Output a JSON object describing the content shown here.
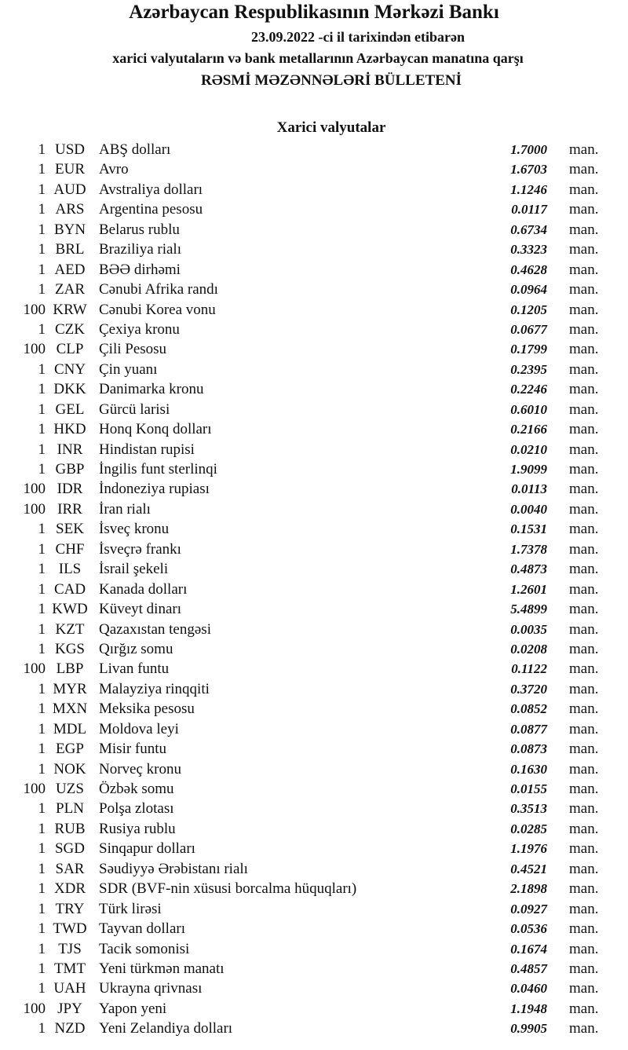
{
  "header": {
    "bank": "Azərbaycan Respublikasının Mərkəzi Bankı",
    "date_line": "23.09.2022 -ci il tarixindən etibarən",
    "subtitle": "xarici valyutaların və bank metallarının Azərbaycan manatına qarşı",
    "title": "RƏSMİ MƏZƏNNƏLƏRİ BÜLLETENİ"
  },
  "section_title": "Xarici valyutalar",
  "unit": "man.",
  "rates": [
    {
      "nominal": "1",
      "code": "USD",
      "name": "ABŞ dolları",
      "rate": "1.7000"
    },
    {
      "nominal": "1",
      "code": "EUR",
      "name": "Avro",
      "rate": "1.6703"
    },
    {
      "nominal": "1",
      "code": "AUD",
      "name": "Avstraliya dolları",
      "rate": "1.1246"
    },
    {
      "nominal": "1",
      "code": "ARS",
      "name": "Argentina pesosu",
      "rate": "0.0117"
    },
    {
      "nominal": "1",
      "code": "BYN",
      "name": "Belarus rublu",
      "rate": "0.6734"
    },
    {
      "nominal": "1",
      "code": "BRL",
      "name": "Braziliya rialı",
      "rate": "0.3323"
    },
    {
      "nominal": "1",
      "code": "AED",
      "name": "BƏƏ dirhəmi",
      "rate": "0.4628"
    },
    {
      "nominal": "1",
      "code": "ZAR",
      "name": "Cənubi Afrika randı",
      "rate": "0.0964"
    },
    {
      "nominal": "100",
      "code": "KRW",
      "name": "Cənubi Korea vonu",
      "rate": "0.1205"
    },
    {
      "nominal": "1",
      "code": "CZK",
      "name": "Çexiya kronu",
      "rate": "0.0677"
    },
    {
      "nominal": "100",
      "code": "CLP",
      "name": "Çili Pesosu",
      "rate": "0.1799"
    },
    {
      "nominal": "1",
      "code": "CNY",
      "name": "Çin yuanı",
      "rate": "0.2395"
    },
    {
      "nominal": "1",
      "code": "DKK",
      "name": "Danimarka kronu",
      "rate": "0.2246"
    },
    {
      "nominal": "1",
      "code": "GEL",
      "name": "Gürcü larisi",
      "rate": "0.6010"
    },
    {
      "nominal": "1",
      "code": "HKD",
      "name": "Honq Konq dolları",
      "rate": "0.2166"
    },
    {
      "nominal": "1",
      "code": "INR",
      "name": "Hindistan rupisi",
      "rate": "0.0210"
    },
    {
      "nominal": "1",
      "code": "GBP",
      "name": "İngilis funt sterlinqi",
      "rate": "1.9099"
    },
    {
      "nominal": "100",
      "code": "IDR",
      "name": "İndoneziya rupiası",
      "rate": "0.0113"
    },
    {
      "nominal": "100",
      "code": "IRR",
      "name": "İran rialı",
      "rate": "0.0040"
    },
    {
      "nominal": "1",
      "code": "SEK",
      "name": "İsveç kronu",
      "rate": "0.1531"
    },
    {
      "nominal": "1",
      "code": "CHF",
      "name": "İsveçrə frankı",
      "rate": "1.7378"
    },
    {
      "nominal": "1",
      "code": "ILS",
      "name": "İsrail şekeli",
      "rate": "0.4873"
    },
    {
      "nominal": "1",
      "code": "CAD",
      "name": "Kanada dolları",
      "rate": "1.2601"
    },
    {
      "nominal": "1",
      "code": "KWD",
      "name": "Küveyt dinarı",
      "rate": "5.4899"
    },
    {
      "nominal": "1",
      "code": "KZT",
      "name": "Qazaxıstan tengəsi",
      "rate": "0.0035"
    },
    {
      "nominal": "1",
      "code": "KGS",
      "name": "Qırğız somu",
      "rate": "0.0208"
    },
    {
      "nominal": "100",
      "code": "LBP",
      "name": "Livan funtu",
      "rate": "0.1122"
    },
    {
      "nominal": "1",
      "code": "MYR",
      "name": "Malayziya rinqqiti",
      "rate": "0.3720"
    },
    {
      "nominal": "1",
      "code": "MXN",
      "name": "Meksika pesosu",
      "rate": "0.0852"
    },
    {
      "nominal": "1",
      "code": "MDL",
      "name": "Moldova leyi",
      "rate": "0.0877"
    },
    {
      "nominal": "1",
      "code": "EGP",
      "name": "Misir funtu",
      "rate": "0.0873"
    },
    {
      "nominal": "1",
      "code": "NOK",
      "name": "Norveç kronu",
      "rate": "0.1630"
    },
    {
      "nominal": "100",
      "code": "UZS",
      "name": "Özbək somu",
      "rate": "0.0155"
    },
    {
      "nominal": "1",
      "code": "PLN",
      "name": "Polşa zlotası",
      "rate": "0.3513"
    },
    {
      "nominal": "1",
      "code": "RUB",
      "name": "Rusiya rublu",
      "rate": "0.0285"
    },
    {
      "nominal": "1",
      "code": "SGD",
      "name": "Sinqapur dolları",
      "rate": "1.1976"
    },
    {
      "nominal": "1",
      "code": "SAR",
      "name": "Səudiyyə Ərəbistanı rialı",
      "rate": "0.4521"
    },
    {
      "nominal": "1",
      "code": "XDR",
      "name": "SDR (BVF-nin xüsusi borcalma hüquqları)",
      "rate": "2.1898"
    },
    {
      "nominal": "1",
      "code": "TRY",
      "name": "Türk lirəsi",
      "rate": "0.0927"
    },
    {
      "nominal": "1",
      "code": "TWD",
      "name": "Tayvan dolları",
      "rate": "0.0536"
    },
    {
      "nominal": "1",
      "code": "TJS",
      "name": "Tacik somonisi",
      "rate": "0.1674"
    },
    {
      "nominal": "1",
      "code": "TMT",
      "name": "Yeni türkmən manatı",
      "rate": "0.4857"
    },
    {
      "nominal": "1",
      "code": "UAH",
      "name": "Ukrayna qrivnası",
      "rate": "0.0460"
    },
    {
      "nominal": "100",
      "code": "JPY",
      "name": "Yapon yeni",
      "rate": "1.1948"
    },
    {
      "nominal": "1",
      "code": "NZD",
      "name": "Yeni Zelandiya dolları",
      "rate": "0.9905"
    }
  ]
}
